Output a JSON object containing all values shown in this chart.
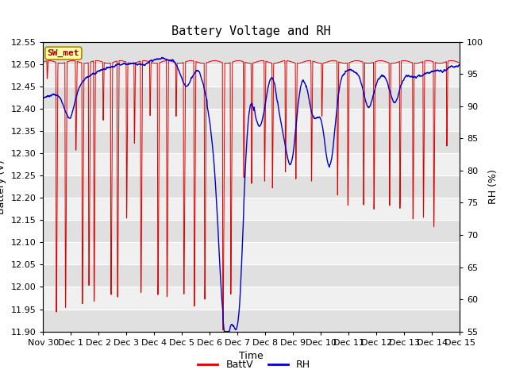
{
  "title": "Battery Voltage and RH",
  "xlabel": "Time",
  "ylabel_left": "Battery (V)",
  "ylabel_right": "RH (%)",
  "ylim_left": [
    11.9,
    12.55
  ],
  "ylim_right": [
    55,
    100
  ],
  "yticks_left": [
    11.9,
    11.95,
    12.0,
    12.05,
    12.1,
    12.15,
    12.2,
    12.25,
    12.3,
    12.35,
    12.4,
    12.45,
    12.5,
    12.55
  ],
  "yticks_right": [
    55,
    60,
    65,
    70,
    75,
    80,
    85,
    90,
    95,
    100
  ],
  "xtick_labels": [
    "Nov 30",
    "Dec 1",
    "Dec 2",
    "Dec 3",
    "Dec 4",
    "Dec 5",
    "Dec 6",
    "Dec 7",
    "Dec 8",
    "Dec 9",
    "Dec 10",
    "Dec 11",
    "Dec 12",
    "Dec 13",
    "Dec 14",
    "Dec 15"
  ],
  "station_label": "SW_met",
  "battv_color": "#DD0000",
  "rh_color": "#0000CC",
  "background_color": "#FFFFFF",
  "plot_bg_light": "#F0F0F0",
  "plot_bg_dark": "#E0E0E0",
  "grid_color": "#FFFFFF",
  "title_fontsize": 11,
  "axis_label_fontsize": 9,
  "tick_fontsize": 8,
  "legend_fontsize": 9
}
